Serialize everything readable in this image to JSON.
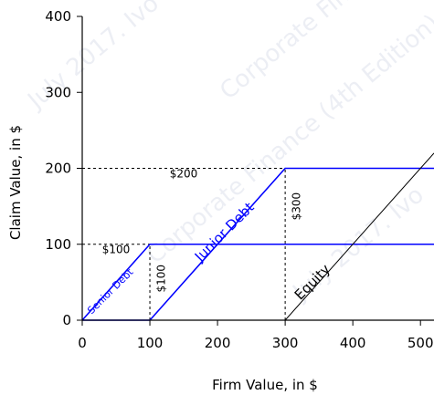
{
  "chart_data": {
    "type": "line",
    "xlabel": "Firm Value, in $",
    "ylabel": "Claim Value, in $",
    "xlim": [
      0,
      520
    ],
    "ylim": [
      0,
      400
    ],
    "x_ticks": [
      0,
      100,
      200,
      300,
      400,
      500
    ],
    "y_ticks": [
      0,
      100,
      200,
      300,
      400
    ],
    "x_tick_labels": [
      "0",
      "100",
      "200",
      "300",
      "400",
      "500"
    ],
    "y_tick_labels": [
      "0",
      "100",
      "200",
      "300",
      "400"
    ],
    "grid": false,
    "series": [
      {
        "name": "Senior Debt",
        "color": "#0000ff",
        "x": [
          0,
          100,
          520
        ],
        "y": [
          0,
          100,
          100
        ]
      },
      {
        "name": "Junior Debt",
        "color": "#0000ff",
        "x": [
          0,
          100,
          300,
          520
        ],
        "y": [
          0,
          0,
          200,
          200
        ]
      },
      {
        "name": "Equity",
        "color": "#000000",
        "x": [
          0,
          300,
          520
        ],
        "y": [
          0,
          0,
          220
        ]
      }
    ],
    "series_labels": [
      {
        "text": "Senior Debt",
        "x": 45,
        "y": 35,
        "angle": 45,
        "color": "#0000ff",
        "size": "small"
      },
      {
        "text": "Junior Debt",
        "x": 215,
        "y": 112,
        "angle": 45,
        "color": "#0000ff",
        "size": "large"
      },
      {
        "text": "Equity",
        "x": 345,
        "y": 46,
        "angle": 45,
        "color": "#000000",
        "size": "large"
      }
    ],
    "reference_lines": [
      {
        "from": [
          0,
          100
        ],
        "to": [
          100,
          100
        ]
      },
      {
        "from": [
          0,
          200
        ],
        "to": [
          300,
          200
        ]
      },
      {
        "from": [
          100,
          0
        ],
        "to": [
          100,
          100
        ]
      },
      {
        "from": [
          300,
          0
        ],
        "to": [
          300,
          200
        ]
      }
    ],
    "annotations": [
      {
        "text": "$100",
        "x": 50,
        "y": 88,
        "angle": 0
      },
      {
        "text": "$200",
        "x": 150,
        "y": 188,
        "angle": 0
      },
      {
        "text": "$100",
        "x": 122,
        "y": 55,
        "angle": -90
      },
      {
        "text": "$300",
        "x": 322,
        "y": 150,
        "angle": -90
      }
    ]
  },
  "watermark": {
    "lines": [
      "July 2017. Ivo Welch",
      "Corporate Finance (4th Edition)",
      "Corporate Finance (4th",
      "July 2017. Ivo"
    ]
  }
}
